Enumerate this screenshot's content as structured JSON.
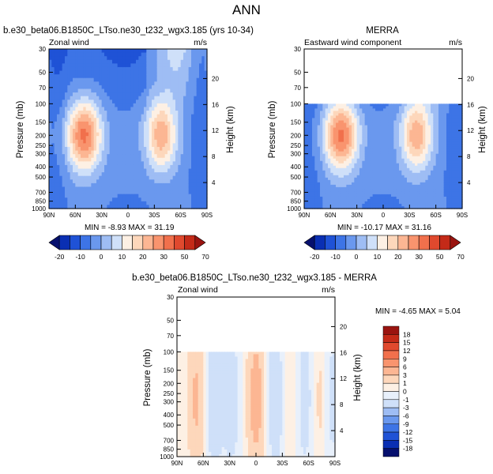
{
  "figure_title": "ANN",
  "colors": {
    "panel_scale": [
      "#06106e",
      "#0a2fb3",
      "#1f52d6",
      "#3d74e6",
      "#6a98ee",
      "#9ebdf4",
      "#cfe0f9",
      "#fdf0e4",
      "#fdd7bb",
      "#fcb693",
      "#f9946e",
      "#f1704c",
      "#e0492e",
      "#c42a18",
      "#9a1410"
    ],
    "diff_scale": [
      "#06106e",
      "#0a2fb3",
      "#1f52d6",
      "#3d74e6",
      "#6a98ee",
      "#9ebdf4",
      "#cfe0f9",
      "#e8f0fb",
      "#fdf0e4",
      "#fdd7bb",
      "#fcb693",
      "#f9946e",
      "#f1704c",
      "#e0492e",
      "#c42a18",
      "#9a1410"
    ]
  },
  "chart_data": [
    {
      "type": "heatmap",
      "panel_title": "b.e30_beta06.B1850C_LTso.ne30_t232_wgx3.185 (yrs 10-34)",
      "left_label": "Zonal wind",
      "units": "m/s",
      "ylabel": "Pressure (mb)",
      "ylabel_right": "Height (km)",
      "x_ticks": [
        "90N",
        "60N",
        "30N",
        "0",
        "30S",
        "60S",
        "90S"
      ],
      "y_ticks": [
        "30",
        "50",
        "70",
        "100",
        "150",
        "200",
        "250",
        "300",
        "400",
        "500",
        "700",
        "850",
        "1000"
      ],
      "height_ticks": [
        "4",
        "8",
        "12",
        "16",
        "20"
      ],
      "min_max": "MIN =  -8.93   MAX =  31.19",
      "colorbar_labels": [
        "-20",
        "-10",
        "0",
        "10",
        "20",
        "30",
        "50",
        "70"
      ],
      "jets": [
        {
          "lat": 50,
          "pressure": 200,
          "max": 31.19
        },
        {
          "lat": -38,
          "pressure": 200,
          "max": 24
        }
      ],
      "min": -8.93,
      "max": 31.19
    },
    {
      "type": "heatmap",
      "panel_title": "MERRA",
      "left_label": "Eastward wind component",
      "units": "m/s",
      "ylabel": "Pressure (mb)",
      "ylabel_right": "Height (km)",
      "x_ticks": [
        "90N",
        "60N",
        "30N",
        "0",
        "30S",
        "60S",
        "90S"
      ],
      "y_ticks": [
        "30",
        "50",
        "70",
        "100",
        "150",
        "200",
        "250",
        "300",
        "400",
        "500",
        "700",
        "850",
        "1000"
      ],
      "height_ticks": [
        "4",
        "8",
        "12",
        "16",
        "20"
      ],
      "min_max": "MIN = -10.17   MAX =  31.16",
      "colorbar_labels": [
        "-20",
        "-10",
        "0",
        "10",
        "20",
        "30",
        "50",
        "70"
      ],
      "data_top_pressure": 100,
      "jets": [
        {
          "lat": 48,
          "pressure": 200,
          "max": 31.16
        },
        {
          "lat": -38,
          "pressure": 200,
          "max": 24
        }
      ],
      "min": -10.17,
      "max": 31.16
    },
    {
      "type": "heatmap",
      "panel_title": "b.e30_beta06.B1850C_LTso.ne30_t232_wgx3.185 - MERRA",
      "left_label": "Zonal wind",
      "units": "m/s",
      "ylabel": "Pressure (mb)",
      "ylabel_right": "Height (km)",
      "x_ticks": [
        "90N",
        "60N",
        "30N",
        "0",
        "30S",
        "60S",
        "90S"
      ],
      "y_ticks": [
        "30",
        "50",
        "70",
        "100",
        "150",
        "200",
        "250",
        "300",
        "400",
        "500",
        "700",
        "850",
        "1000"
      ],
      "height_ticks": [
        "4",
        "8",
        "12",
        "16",
        "20"
      ],
      "min_max": "MIN =  -4.65   MAX =   5.04",
      "colorbar_labels": [
        "18",
        "15",
        "12",
        "9",
        "6",
        "3",
        "1",
        "0",
        "-1",
        "-3",
        "-6",
        "-9",
        "-12",
        "-15",
        "-18"
      ],
      "data_top_pressure": 100,
      "min": -4.65,
      "max": 5.04
    }
  ]
}
